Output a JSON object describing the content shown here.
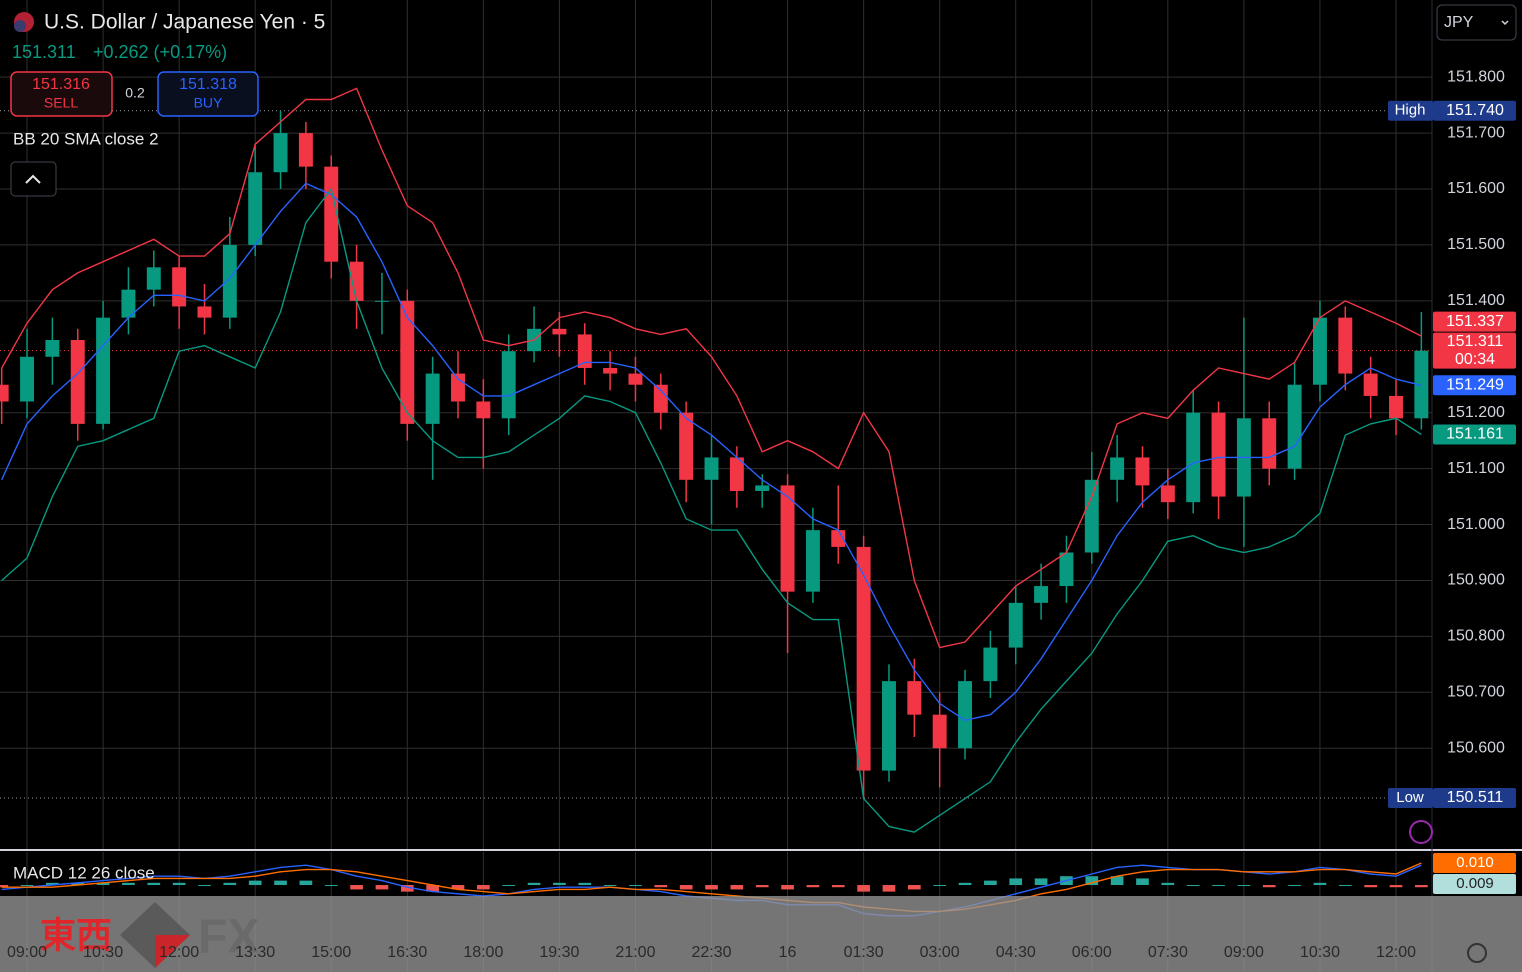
{
  "header": {
    "title": "U.S. Dollar / Japanese Yen · 5",
    "change": "+0.262 (+0.17%)",
    "sell": {
      "price": "151.316",
      "label": "SELL"
    },
    "spread": "0.2",
    "buy": {
      "price": "151.318",
      "label": "BUY"
    },
    "indicator": "BB 20 SMA close 2",
    "currency": "JPY"
  },
  "watermark": {
    "brand": "東西",
    "suffix": "FX"
  },
  "chart_data": [
    {
      "type": "candlestick",
      "x": [
        -0.5,
        0,
        0.5,
        1,
        1.5,
        2,
        2.5,
        3,
        3.5,
        4,
        4.5,
        5,
        5.5,
        6,
        6.5,
        7,
        7.5,
        8,
        8.5,
        9,
        9.5,
        10,
        10.5,
        11,
        11.5,
        12,
        12.5,
        13,
        13.5,
        14,
        14.5,
        15,
        15.5,
        16,
        16.5,
        17,
        17.5,
        18,
        18.5,
        19,
        19.5,
        20,
        20.5,
        21,
        21.5,
        22,
        22.5,
        23,
        23.5,
        24,
        24.5,
        25,
        25.5,
        26,
        26.5,
        27,
        27.5
      ],
      "open": [
        151.25,
        151.22,
        151.3,
        151.33,
        151.18,
        151.37,
        151.42,
        151.46,
        151.39,
        151.37,
        151.5,
        151.63,
        151.7,
        151.64,
        151.47,
        151.4,
        151.4,
        151.18,
        151.27,
        151.22,
        151.19,
        151.31,
        151.35,
        151.34,
        151.28,
        151.27,
        151.25,
        151.2,
        151.08,
        151.12,
        151.06,
        151.07,
        150.88,
        150.99,
        150.96,
        150.56,
        150.72,
        150.66,
        150.6,
        150.72,
        150.78,
        150.86,
        150.89,
        150.95,
        151.08,
        151.12,
        151.07,
        151.04,
        151.2,
        151.05,
        151.19,
        151.1,
        151.25,
        151.37,
        151.27,
        151.23,
        151.19
      ],
      "high": [
        151.28,
        151.35,
        151.37,
        151.35,
        151.4,
        151.46,
        151.49,
        151.48,
        151.43,
        151.55,
        151.68,
        151.74,
        151.72,
        151.66,
        151.5,
        151.45,
        151.42,
        151.3,
        151.31,
        151.26,
        151.34,
        151.39,
        151.38,
        151.36,
        151.31,
        151.3,
        151.27,
        151.22,
        151.16,
        151.14,
        151.09,
        151.09,
        151.03,
        151.07,
        150.98,
        150.75,
        150.76,
        150.7,
        150.74,
        150.81,
        150.89,
        150.93,
        150.98,
        151.13,
        151.16,
        151.14,
        151.1,
        151.24,
        151.22,
        151.37,
        151.22,
        151.29,
        151.4,
        151.39,
        151.3,
        151.26,
        151.38
      ],
      "low": [
        151.18,
        151.19,
        151.25,
        151.15,
        151.17,
        151.34,
        151.39,
        151.35,
        151.34,
        151.35,
        151.48,
        151.6,
        151.6,
        151.44,
        151.35,
        151.34,
        151.15,
        151.08,
        151.19,
        151.1,
        151.16,
        151.29,
        151.3,
        151.25,
        151.24,
        151.22,
        151.17,
        151.04,
        151.0,
        151.03,
        151.03,
        150.77,
        150.86,
        150.93,
        150.511,
        150.54,
        150.62,
        150.53,
        150.58,
        150.69,
        150.75,
        150.83,
        150.86,
        150.93,
        151.04,
        151.03,
        151.01,
        151.02,
        151.01,
        150.96,
        151.07,
        151.08,
        151.22,
        151.24,
        151.19,
        151.16,
        151.17
      ],
      "close": [
        151.22,
        151.3,
        151.33,
        151.18,
        151.37,
        151.42,
        151.46,
        151.39,
        151.37,
        151.5,
        151.63,
        151.7,
        151.64,
        151.47,
        151.4,
        151.4,
        151.18,
        151.27,
        151.22,
        151.19,
        151.31,
        151.35,
        151.34,
        151.28,
        151.27,
        151.25,
        151.2,
        151.08,
        151.12,
        151.06,
        151.07,
        150.88,
        150.99,
        150.96,
        150.56,
        150.72,
        150.66,
        150.6,
        150.72,
        150.78,
        150.86,
        150.89,
        150.95,
        151.08,
        151.12,
        151.07,
        151.04,
        151.2,
        151.05,
        151.19,
        151.1,
        151.25,
        151.37,
        151.27,
        151.23,
        151.19,
        151.311
      ],
      "up_color": "#089981",
      "down_color": "#f23645",
      "series": [
        {
          "color": "#f23645",
          "values": [
            151.28,
            151.36,
            151.42,
            151.45,
            151.47,
            151.49,
            151.51,
            151.48,
            151.48,
            151.52,
            151.68,
            151.72,
            151.76,
            151.76,
            151.78,
            151.67,
            151.57,
            151.54,
            151.45,
            151.33,
            151.32,
            151.33,
            151.37,
            151.38,
            151.37,
            151.35,
            151.34,
            151.35,
            151.3,
            151.23,
            151.13,
            151.15,
            151.13,
            151.1,
            151.2,
            151.13,
            150.9,
            150.78,
            150.79,
            150.84,
            150.89,
            150.92,
            150.95,
            151.05,
            151.18,
            151.2,
            151.19,
            151.24,
            151.28,
            151.27,
            151.26,
            151.29,
            151.37,
            151.4,
            151.38,
            151.36,
            151.337
          ]
        },
        {
          "color": "#2962ff",
          "values": [
            151.08,
            151.18,
            151.23,
            151.27,
            151.32,
            151.37,
            151.41,
            151.41,
            151.4,
            151.44,
            151.5,
            151.56,
            151.61,
            151.59,
            151.55,
            151.47,
            151.37,
            151.32,
            151.26,
            151.23,
            151.23,
            151.25,
            151.27,
            151.29,
            151.29,
            151.28,
            151.24,
            151.19,
            151.16,
            151.12,
            151.08,
            151.05,
            151.01,
            150.99,
            150.91,
            150.82,
            150.74,
            150.68,
            150.65,
            150.66,
            150.7,
            150.76,
            150.83,
            150.9,
            150.98,
            151.04,
            151.08,
            151.11,
            151.12,
            151.12,
            151.12,
            151.14,
            151.21,
            151.25,
            151.28,
            151.26,
            151.249
          ]
        },
        {
          "color": "#089981",
          "values": [
            150.9,
            150.94,
            151.05,
            151.14,
            151.15,
            151.17,
            151.19,
            151.31,
            151.32,
            151.3,
            151.28,
            151.38,
            151.54,
            151.6,
            151.4,
            151.28,
            151.2,
            151.15,
            151.12,
            151.12,
            151.13,
            151.16,
            151.19,
            151.23,
            151.22,
            151.2,
            151.11,
            151.01,
            150.99,
            150.99,
            150.92,
            150.86,
            150.83,
            150.83,
            150.51,
            150.46,
            150.45,
            150.48,
            150.51,
            150.54,
            150.61,
            150.67,
            150.72,
            150.77,
            150.84,
            150.9,
            150.97,
            150.98,
            150.96,
            150.95,
            150.96,
            150.98,
            151.02,
            151.16,
            151.18,
            151.19,
            151.161
          ]
        }
      ],
      "xlim": [
        -0.533,
        27.71
      ],
      "xticks": [
        {
          "value": 0,
          "label": "09:00"
        },
        {
          "value": 1.5,
          "label": "10:30"
        },
        {
          "value": 3,
          "label": "12:00"
        },
        {
          "value": 4.5,
          "label": "13:30"
        },
        {
          "value": 6,
          "label": "15:00"
        },
        {
          "value": 7.5,
          "label": "16:30"
        },
        {
          "value": 9,
          "label": "18:00"
        },
        {
          "value": 10.5,
          "label": "19:30"
        },
        {
          "value": 12,
          "label": "21:00"
        },
        {
          "value": 13.5,
          "label": "22:30"
        },
        {
          "value": 15,
          "label": "16"
        },
        {
          "value": 16.5,
          "label": "01:30"
        },
        {
          "value": 18,
          "label": "03:00"
        },
        {
          "value": 19.5,
          "label": "04:30"
        },
        {
          "value": 21,
          "label": "06:00"
        },
        {
          "value": 22.5,
          "label": "07:30"
        },
        {
          "value": 24,
          "label": "09:00"
        },
        {
          "value": 25.5,
          "label": "10:30"
        },
        {
          "value": 27,
          "label": "12:00"
        }
      ],
      "ylim": [
        150.418,
        151.938
      ],
      "yticks": [
        {
          "value": 150.6,
          "label": "150.600"
        },
        {
          "value": 150.7,
          "label": "150.700"
        },
        {
          "value": 150.8,
          "label": "150.800"
        },
        {
          "value": 150.9,
          "label": "150.900"
        },
        {
          "value": 151,
          "label": "151.000"
        },
        {
          "value": 151.1,
          "label": "151.100"
        },
        {
          "value": 151.2,
          "label": "151.200"
        },
        {
          "value": 151.4,
          "label": "151.400"
        },
        {
          "value": 151.5,
          "label": "151.500"
        },
        {
          "value": 151.6,
          "label": "151.600"
        },
        {
          "value": 151.7,
          "label": "151.700"
        },
        {
          "value": 151.8,
          "label": "151.800"
        }
      ],
      "grid": true,
      "high_marker": {
        "name": "High",
        "value": 151.74,
        "label": "151.740"
      },
      "low_marker": {
        "name": "Low",
        "value": 150.511,
        "label": "150.511"
      },
      "countdown": "00:34"
    },
    {
      "type": "macd",
      "title": "MACD 12 26 close",
      "histogram": {
        "up_color": "#26a69a",
        "down_color": "#ef5350",
        "values": [
          -0.001,
          0,
          0.001,
          0.001,
          0.001,
          0.001,
          0.001,
          0.001,
          0,
          0.001,
          0.002,
          0.002,
          0.002,
          0,
          -0.002,
          -0.002,
          -0.003,
          -0.003,
          -0.002,
          -0.002,
          0,
          0.001,
          0.001,
          0.001,
          0,
          0,
          -0.001,
          -0.002,
          -0.002,
          -0.002,
          -0.001,
          -0.002,
          -0.001,
          -0.001,
          -0.003,
          -0.003,
          -0.002,
          0,
          0.001,
          0.002,
          0.003,
          0.003,
          0.004,
          0.004,
          0.004,
          0.003,
          0.001,
          0,
          0,
          0,
          -0.001,
          0,
          0.001,
          0,
          -0.001,
          -0.001,
          -0.001
        ]
      },
      "series": [
        {
          "color": "#2962ff",
          "tag_color": "#b2dfdb",
          "last_label": "0.009",
          "values": [
            -0.002,
            -0.001,
            0,
            0.001,
            0.002,
            0.003,
            0.004,
            0.004,
            0.003,
            0.004,
            0.006,
            0.008,
            0.009,
            0.007,
            0.004,
            0.002,
            -0.001,
            -0.003,
            -0.004,
            -0.005,
            -0.004,
            -0.002,
            -0.001,
            -0.001,
            -0.001,
            -0.002,
            -0.003,
            -0.005,
            -0.006,
            -0.007,
            -0.007,
            -0.009,
            -0.009,
            -0.009,
            -0.013,
            -0.014,
            -0.014,
            -0.012,
            -0.01,
            -0.007,
            -0.004,
            -0.001,
            0.002,
            0.005,
            0.008,
            0.009,
            0.008,
            0.007,
            0.007,
            0.006,
            0.005,
            0.006,
            0.008,
            0.007,
            0.005,
            0.004,
            0.009
          ]
        },
        {
          "color": "#ff6d00",
          "tag_color": "#ff6d00",
          "last_label": "0.010",
          "values": [
            -0.001,
            -0.001,
            -0.001,
            0,
            0.001,
            0.002,
            0.003,
            0.003,
            0.003,
            0.003,
            0.004,
            0.006,
            0.007,
            0.007,
            0.006,
            0.004,
            0.002,
            0,
            -0.002,
            -0.003,
            -0.004,
            -0.003,
            -0.002,
            -0.002,
            -0.001,
            -0.002,
            -0.002,
            -0.003,
            -0.004,
            -0.005,
            -0.006,
            -0.007,
            -0.008,
            -0.008,
            -0.01,
            -0.011,
            -0.012,
            -0.012,
            -0.011,
            -0.009,
            -0.007,
            -0.004,
            -0.002,
            0.001,
            0.004,
            0.006,
            0.007,
            0.007,
            0.007,
            0.006,
            0.006,
            0.006,
            0.007,
            0.007,
            0.006,
            0.005,
            0.01
          ]
        }
      ],
      "ylim": [
        -0.0227,
        0.015
      ]
    }
  ]
}
